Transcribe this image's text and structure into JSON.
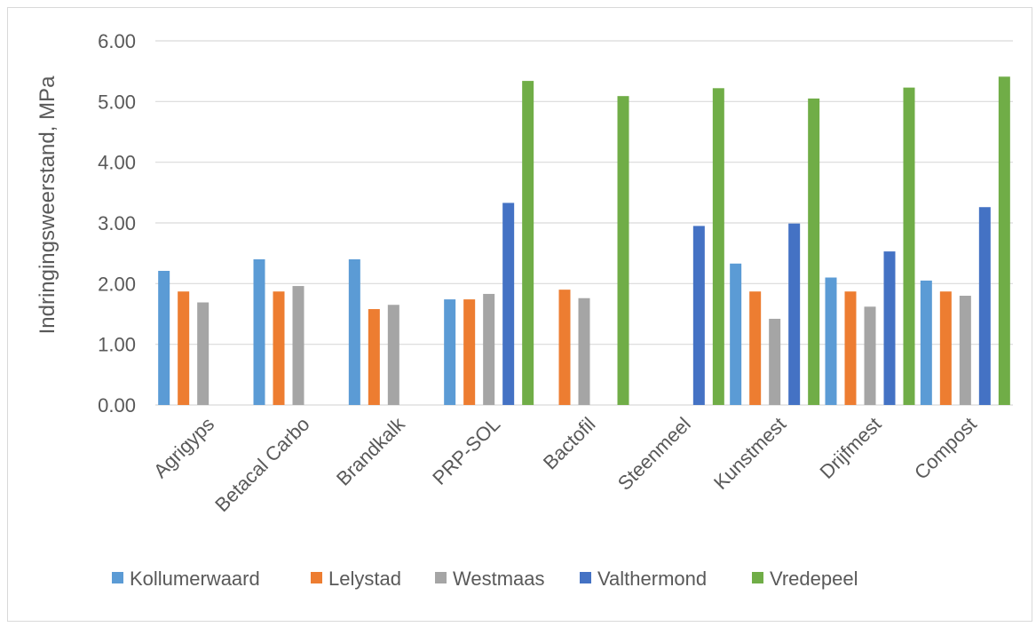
{
  "chart_data": {
    "type": "bar",
    "title": "",
    "xlabel": "",
    "ylabel": "Indringingsweerstand, MPa",
    "ylim": [
      0,
      6
    ],
    "yticks": [
      "0.00",
      "1.00",
      "2.00",
      "3.00",
      "4.00",
      "5.00",
      "6.00"
    ],
    "grid": true,
    "legend_position": "bottom",
    "categories": [
      "Agrigyps",
      "Betacal Carbo",
      "Brandkalk",
      "PRP-SOL",
      "Bactofil",
      "Steenmeel",
      "Kunstmest",
      "Drijfmest",
      "Compost"
    ],
    "series": [
      {
        "name": "Kollumerwaard",
        "color": "#5b9bd5",
        "values": [
          2.21,
          2.4,
          2.4,
          1.74,
          null,
          null,
          2.33,
          2.1,
          2.05
        ]
      },
      {
        "name": "Lelystad",
        "color": "#ed7d31",
        "values": [
          1.87,
          1.87,
          1.58,
          1.74,
          1.9,
          null,
          1.87,
          1.87,
          1.87
        ]
      },
      {
        "name": "Westmaas",
        "color": "#a5a5a5",
        "values": [
          1.69,
          1.96,
          1.65,
          1.83,
          1.76,
          null,
          1.42,
          1.62,
          1.8
        ]
      },
      {
        "name": "Valthermond",
        "color": "#4472c4",
        "values": [
          null,
          null,
          null,
          3.33,
          null,
          2.95,
          2.99,
          2.53,
          3.26
        ]
      },
      {
        "name": "Vredepeel",
        "color": "#70ad47",
        "values": [
          null,
          null,
          null,
          5.34,
          5.09,
          5.22,
          5.05,
          5.23,
          5.41
        ]
      }
    ]
  }
}
